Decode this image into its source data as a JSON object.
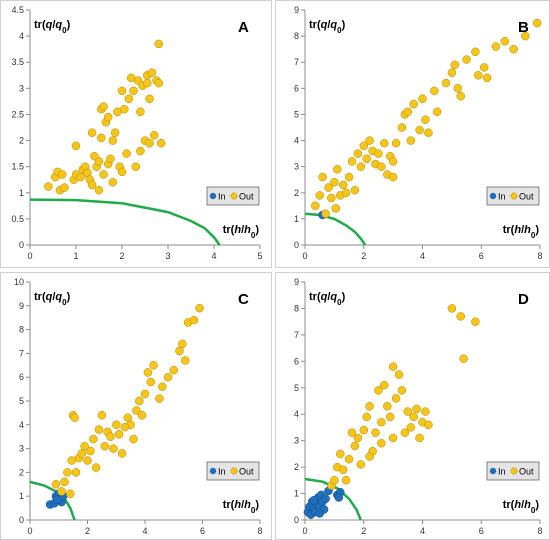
{
  "figure": {
    "colors": {
      "in": "#1f6fbd",
      "out": "#f5c518",
      "out_stroke": "#b8860b",
      "curve": "#1faa4b",
      "axis": "#8c8c8c",
      "legend_bg": "#e4e4e4"
    }
  },
  "chart_data": [
    {
      "type": "scatter",
      "panel_label": "A",
      "xlabel": "tr(h/h0)",
      "ylabel": "tr(q/q0)",
      "xlim": [
        0,
        5
      ],
      "ylim": [
        0,
        4.5
      ],
      "xticks": [
        0,
        1,
        2,
        3,
        4,
        5
      ],
      "yticks": [
        0,
        0.5,
        1,
        1.5,
        2,
        2.5,
        3,
        3.5,
        4,
        4.5
      ],
      "legend": [
        "In",
        "Out"
      ],
      "legend_position": "bottom-right",
      "boundary_curve": [
        [
          0,
          0.87
        ],
        [
          1,
          0.86
        ],
        [
          2,
          0.8
        ],
        [
          3,
          0.63
        ],
        [
          3.5,
          0.46
        ],
        [
          3.8,
          0.32
        ],
        [
          4.0,
          0.15
        ],
        [
          4.12,
          0
        ]
      ],
      "series": [
        {
          "name": "In",
          "points": []
        },
        {
          "name": "Out",
          "points": [
            [
              0.4,
              1.12
            ],
            [
              0.55,
              1.3
            ],
            [
              0.6,
              1.4
            ],
            [
              0.65,
              1.05
            ],
            [
              0.7,
              1.35
            ],
            [
              0.75,
              1.1
            ],
            [
              0.95,
              1.25
            ],
            [
              1.0,
              1.9
            ],
            [
              1.0,
              1.35
            ],
            [
              1.1,
              1.3
            ],
            [
              1.15,
              1.45
            ],
            [
              1.2,
              1.5
            ],
            [
              1.25,
              1.38
            ],
            [
              1.3,
              1.25
            ],
            [
              1.35,
              1.15
            ],
            [
              1.35,
              2.15
            ],
            [
              1.4,
              1.7
            ],
            [
              1.45,
              1.5
            ],
            [
              1.5,
              1.6
            ],
            [
              1.55,
              2.05
            ],
            [
              1.55,
              2.6
            ],
            [
              1.6,
              2.65
            ],
            [
              1.6,
              1.35
            ],
            [
              1.65,
              2.35
            ],
            [
              1.7,
              1.55
            ],
            [
              1.7,
              2.45
            ],
            [
              1.75,
              1.65
            ],
            [
              1.8,
              2.0
            ],
            [
              1.8,
              1.2
            ],
            [
              1.85,
              2.15
            ],
            [
              1.9,
              2.55
            ],
            [
              1.95,
              1.5
            ],
            [
              2.0,
              2.95
            ],
            [
              2.0,
              1.4
            ],
            [
              2.05,
              2.6
            ],
            [
              2.1,
              1.75
            ],
            [
              2.15,
              2.8
            ],
            [
              2.2,
              3.2
            ],
            [
              2.25,
              2.95
            ],
            [
              2.3,
              1.5
            ],
            [
              2.35,
              3.15
            ],
            [
              2.4,
              1.8
            ],
            [
              2.45,
              3.05
            ],
            [
              2.5,
              2.0
            ],
            [
              2.55,
              3.25
            ],
            [
              2.55,
              3.1
            ],
            [
              2.6,
              1.95
            ],
            [
              2.65,
              3.3
            ],
            [
              2.7,
              2.1
            ],
            [
              2.75,
              3.15
            ],
            [
              2.8,
              3.1
            ],
            [
              2.8,
              3.85
            ],
            [
              2.85,
              1.95
            ],
            [
              2.6,
              2.8
            ],
            [
              2.4,
              2.55
            ],
            [
              1.5,
              1.05
            ]
          ]
        }
      ]
    },
    {
      "type": "scatter",
      "panel_label": "B",
      "xlabel": "tr(h/h0)",
      "ylabel": "tr(q/q0)",
      "xlim": [
        0,
        8
      ],
      "ylim": [
        0,
        9
      ],
      "xticks": [
        0,
        2,
        4,
        6,
        8
      ],
      "yticks": [
        0,
        1,
        2,
        3,
        4,
        5,
        6,
        7,
        8,
        9
      ],
      "legend": [
        "In",
        "Out"
      ],
      "legend_position": "bottom-right",
      "boundary_curve": [
        [
          0,
          1.2
        ],
        [
          0.5,
          1.15
        ],
        [
          1.0,
          1.0
        ],
        [
          1.4,
          0.75
        ],
        [
          1.7,
          0.5
        ],
        [
          1.9,
          0.25
        ],
        [
          2.05,
          0
        ]
      ],
      "series": [
        {
          "name": "In",
          "points": [
            [
              0.6,
              1.15
            ]
          ]
        },
        {
          "name": "Out",
          "points": [
            [
              0.35,
              1.5
            ],
            [
              0.5,
              1.9
            ],
            [
              0.6,
              2.6
            ],
            [
              0.7,
              1.2
            ],
            [
              0.8,
              2.2
            ],
            [
              0.9,
              1.8
            ],
            [
              1.0,
              2.4
            ],
            [
              1.05,
              1.4
            ],
            [
              1.1,
              2.9
            ],
            [
              1.2,
              1.9
            ],
            [
              1.3,
              2.3
            ],
            [
              1.4,
              2.0
            ],
            [
              1.5,
              2.6
            ],
            [
              1.6,
              3.2
            ],
            [
              1.7,
              2.1
            ],
            [
              1.8,
              3.5
            ],
            [
              1.9,
              3.0
            ],
            [
              2.0,
              3.8
            ],
            [
              2.1,
              3.3
            ],
            [
              2.2,
              4.0
            ],
            [
              2.3,
              3.6
            ],
            [
              2.4,
              3.1
            ],
            [
              2.5,
              3.5
            ],
            [
              2.6,
              3.0
            ],
            [
              2.7,
              3.9
            ],
            [
              2.8,
              2.7
            ],
            [
              2.9,
              3.4
            ],
            [
              3.0,
              3.2
            ],
            [
              3.1,
              3.9
            ],
            [
              3.3,
              4.5
            ],
            [
              3.4,
              5.0
            ],
            [
              3.5,
              5.1
            ],
            [
              3.6,
              4.0
            ],
            [
              3.7,
              5.4
            ],
            [
              3.9,
              4.4
            ],
            [
              4.0,
              5.6
            ],
            [
              4.1,
              4.8
            ],
            [
              4.2,
              4.3
            ],
            [
              4.4,
              5.9
            ],
            [
              4.5,
              5.1
            ],
            [
              4.8,
              6.2
            ],
            [
              5.0,
              6.6
            ],
            [
              5.1,
              6.9
            ],
            [
              5.2,
              6.0
            ],
            [
              5.3,
              5.7
            ],
            [
              5.5,
              7.1
            ],
            [
              5.8,
              7.4
            ],
            [
              5.9,
              6.5
            ],
            [
              6.1,
              6.8
            ],
            [
              6.2,
              6.4
            ],
            [
              6.5,
              7.6
            ],
            [
              6.8,
              7.8
            ],
            [
              7.1,
              7.5
            ],
            [
              7.5,
              8.0
            ],
            [
              7.9,
              8.5
            ],
            [
              3.0,
              2.6
            ]
          ]
        }
      ]
    },
    {
      "type": "scatter",
      "panel_label": "C",
      "xlabel": "tr(h/h0)",
      "ylabel": "tr(q/q0)",
      "xlim": [
        0,
        8
      ],
      "ylim": [
        0,
        10
      ],
      "xticks": [
        0,
        2,
        4,
        6,
        8
      ],
      "yticks": [
        0,
        1,
        2,
        3,
        4,
        5,
        6,
        7,
        8,
        9,
        10
      ],
      "legend": [
        "In",
        "Out"
      ],
      "legend_position": "bottom-right",
      "boundary_curve": [
        [
          0,
          1.6
        ],
        [
          0.5,
          1.45
        ],
        [
          0.9,
          1.2
        ],
        [
          1.2,
          0.9
        ],
        [
          1.4,
          0.5
        ],
        [
          1.55,
          0
        ]
      ],
      "series": [
        {
          "name": "In",
          "points": [
            [
              0.7,
              0.65
            ],
            [
              0.85,
              0.7
            ],
            [
              0.9,
              1.0
            ],
            [
              1.0,
              1.1
            ],
            [
              1.05,
              0.85
            ],
            [
              1.1,
              0.75
            ],
            [
              1.15,
              1.0
            ],
            [
              0.95,
              0.85
            ]
          ]
        },
        {
          "name": "Out",
          "points": [
            [
              0.9,
              1.5
            ],
            [
              1.1,
              1.2
            ],
            [
              1.2,
              1.6
            ],
            [
              1.3,
              2.0
            ],
            [
              1.4,
              1.1
            ],
            [
              1.45,
              2.5
            ],
            [
              1.5,
              4.4
            ],
            [
              1.55,
              4.3
            ],
            [
              1.6,
              2.0
            ],
            [
              1.7,
              2.6
            ],
            [
              1.8,
              2.8
            ],
            [
              1.9,
              3.1
            ],
            [
              2.0,
              2.5
            ],
            [
              2.1,
              2.9
            ],
            [
              2.2,
              3.4
            ],
            [
              2.3,
              2.2
            ],
            [
              2.4,
              3.8
            ],
            [
              2.5,
              4.4
            ],
            [
              2.6,
              3.1
            ],
            [
              2.7,
              3.7
            ],
            [
              2.8,
              3.5
            ],
            [
              2.9,
              3.0
            ],
            [
              3.0,
              4.0
            ],
            [
              3.1,
              3.6
            ],
            [
              3.2,
              2.8
            ],
            [
              3.4,
              4.3
            ],
            [
              3.5,
              4.0
            ],
            [
              3.6,
              3.4
            ],
            [
              3.7,
              4.6
            ],
            [
              3.8,
              5.0
            ],
            [
              3.9,
              4.4
            ],
            [
              4.0,
              5.3
            ],
            [
              4.1,
              6.2
            ],
            [
              4.2,
              5.8
            ],
            [
              4.3,
              6.5
            ],
            [
              4.5,
              5.1
            ],
            [
              4.6,
              5.6
            ],
            [
              4.8,
              6.0
            ],
            [
              5.0,
              6.3
            ],
            [
              5.2,
              7.1
            ],
            [
              5.3,
              7.4
            ],
            [
              5.4,
              6.7
            ],
            [
              5.5,
              8.3
            ],
            [
              5.7,
              8.4
            ],
            [
              5.9,
              8.9
            ],
            [
              3.3,
              3.9
            ]
          ]
        }
      ]
    },
    {
      "type": "scatter",
      "panel_label": "D",
      "xlabel": "tr(h/h0)",
      "ylabel": "tr(q/q0)",
      "xlim": [
        0,
        8
      ],
      "ylim": [
        0,
        9
      ],
      "xticks": [
        0,
        2,
        4,
        6,
        8
      ],
      "yticks": [
        0,
        1,
        2,
        3,
        4,
        5,
        6,
        7,
        8,
        9
      ],
      "legend": [
        "In",
        "Out"
      ],
      "legend_position": "bottom-right",
      "boundary_curve": [
        [
          0,
          1.55
        ],
        [
          0.6,
          1.45
        ],
        [
          1.1,
          1.2
        ],
        [
          1.5,
          0.8
        ],
        [
          1.75,
          0.4
        ],
        [
          1.9,
          0
        ]
      ],
      "series": [
        {
          "name": "In",
          "points": [
            [
              0.1,
              0.3
            ],
            [
              0.15,
              0.5
            ],
            [
              0.2,
              0.2
            ],
            [
              0.25,
              0.7
            ],
            [
              0.3,
              0.45
            ],
            [
              0.35,
              0.3
            ],
            [
              0.4,
              0.6
            ],
            [
              0.45,
              0.85
            ],
            [
              0.5,
              0.5
            ],
            [
              0.55,
              0.95
            ],
            [
              0.6,
              0.7
            ],
            [
              0.65,
              0.4
            ],
            [
              0.7,
              0.8
            ],
            [
              0.5,
              0.25
            ],
            [
              0.3,
              0.75
            ],
            [
              0.8,
              1.1
            ],
            [
              1.1,
              0.95
            ],
            [
              1.2,
              1.05
            ],
            [
              1.15,
              0.85
            ]
          ]
        },
        {
          "name": "Out",
          "points": [
            [
              0.9,
              1.3
            ],
            [
              1.0,
              1.5
            ],
            [
              1.1,
              2.0
            ],
            [
              1.2,
              2.5
            ],
            [
              1.3,
              1.9
            ],
            [
              1.4,
              1.5
            ],
            [
              1.5,
              2.3
            ],
            [
              1.6,
              3.3
            ],
            [
              1.7,
              2.8
            ],
            [
              1.8,
              3.1
            ],
            [
              1.9,
              2.1
            ],
            [
              2.0,
              3.4
            ],
            [
              2.1,
              3.9
            ],
            [
              2.2,
              4.3
            ],
            [
              2.3,
              2.6
            ],
            [
              2.4,
              3.3
            ],
            [
              2.5,
              4.9
            ],
            [
              2.6,
              3.7
            ],
            [
              2.7,
              5.1
            ],
            [
              2.8,
              4.3
            ],
            [
              2.9,
              3.9
            ],
            [
              3.0,
              3.1
            ],
            [
              3.1,
              4.6
            ],
            [
              3.2,
              5.5
            ],
            [
              3.3,
              4.9
            ],
            [
              3.4,
              3.3
            ],
            [
              3.5,
              4.1
            ],
            [
              3.6,
              3.5
            ],
            [
              3.7,
              3.9
            ],
            [
              3.8,
              4.2
            ],
            [
              3.9,
              3.1
            ],
            [
              4.0,
              3.7
            ],
            [
              4.1,
              4.1
            ],
            [
              4.2,
              3.6
            ],
            [
              2.2,
              2.4
            ],
            [
              3.0,
              5.8
            ],
            [
              2.6,
              2.9
            ],
            [
              5.0,
              8.0
            ],
            [
              5.3,
              7.7
            ],
            [
              5.8,
              7.5
            ],
            [
              5.4,
              6.1
            ]
          ]
        }
      ]
    }
  ]
}
